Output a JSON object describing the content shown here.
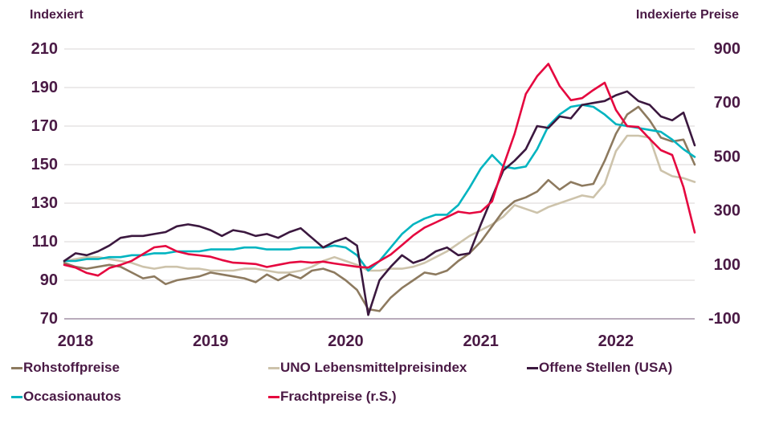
{
  "chart_data": {
    "type": "line",
    "title": "",
    "x": [
      "2018-01",
      "2018-02",
      "2018-03",
      "2018-04",
      "2018-05",
      "2018-06",
      "2018-07",
      "2018-08",
      "2018-09",
      "2018-10",
      "2018-11",
      "2018-12",
      "2019-01",
      "2019-02",
      "2019-03",
      "2019-04",
      "2019-05",
      "2019-06",
      "2019-07",
      "2019-08",
      "2019-09",
      "2019-10",
      "2019-11",
      "2019-12",
      "2020-01",
      "2020-02",
      "2020-03",
      "2020-04",
      "2020-05",
      "2020-06",
      "2020-07",
      "2020-08",
      "2020-09",
      "2020-10",
      "2020-11",
      "2020-12",
      "2021-01",
      "2021-02",
      "2021-03",
      "2021-04",
      "2021-05",
      "2021-06",
      "2021-07",
      "2021-08",
      "2021-09",
      "2021-10",
      "2021-11",
      "2021-12",
      "2022-01",
      "2022-02",
      "2022-03",
      "2022-04",
      "2022-05",
      "2022-06",
      "2022-07",
      "2022-08",
      "2022-09"
    ],
    "x_year_ticks": [
      "2018",
      "2019",
      "2020",
      "2021",
      "2022"
    ],
    "series": [
      {
        "name": "Rohstoffpreise",
        "axis": "left",
        "color": "#8d7a5f",
        "values": [
          99,
          97,
          96,
          97,
          98,
          97,
          94,
          91,
          92,
          88,
          90,
          91,
          92,
          94,
          93,
          92,
          91,
          89,
          93,
          90,
          93,
          91,
          95,
          96,
          94,
          90,
          85,
          75,
          74,
          81,
          86,
          90,
          94,
          93,
          95,
          100,
          104,
          110,
          118,
          126,
          131,
          133,
          136,
          142,
          137,
          141,
          139,
          140,
          152,
          166,
          176,
          180,
          173,
          164,
          162,
          163,
          150
        ]
      },
      {
        "name": "UNO Lebensmittelpreisindex",
        "axis": "left",
        "color": "#cdc3ab",
        "values": [
          100,
          101,
          102,
          102,
          101,
          100,
          99,
          97,
          96,
          97,
          97,
          96,
          96,
          95,
          95,
          95,
          96,
          96,
          95,
          94,
          94,
          95,
          97,
          100,
          102,
          100,
          98,
          95,
          95,
          96,
          96,
          97,
          99,
          102,
          105,
          109,
          113,
          116,
          119,
          123,
          129,
          127,
          125,
          128,
          130,
          132,
          134,
          133,
          140,
          157,
          165,
          165,
          164,
          147,
          144,
          143,
          141
        ]
      },
      {
        "name": "Offene Stellen (USA)",
        "axis": "left",
        "color": "#3b183f",
        "values": [
          100,
          104,
          103,
          105,
          108,
          112,
          113,
          113,
          114,
          115,
          118,
          119,
          118,
          116,
          113,
          116,
          115,
          113,
          114,
          112,
          115,
          117,
          112,
          107,
          110,
          112,
          108,
          72,
          90,
          97,
          103,
          99,
          101,
          105,
          107,
          103,
          104,
          119,
          133,
          147,
          152,
          158,
          170,
          169,
          175,
          174,
          181,
          182,
          183,
          186,
          188,
          183,
          181,
          175,
          173,
          177,
          160
        ]
      },
      {
        "name": "Occasionautos",
        "axis": "left",
        "color": "#00b4c0",
        "values": [
          100,
          100,
          101,
          101,
          102,
          102,
          103,
          103,
          104,
          104,
          105,
          105,
          105,
          106,
          106,
          106,
          107,
          107,
          106,
          106,
          106,
          107,
          107,
          107,
          108,
          107,
          103,
          95,
          100,
          107,
          114,
          119,
          122,
          124,
          124,
          129,
          138,
          148,
          155,
          149,
          148,
          149,
          158,
          170,
          176,
          180,
          181,
          180,
          176,
          171,
          170,
          169,
          168,
          167,
          163,
          158,
          154
        ]
      },
      {
        "name": "Frachtpreise (r.S.)",
        "axis": "right",
        "color": "#e5073f",
        "values": [
          100,
          90,
          70,
          60,
          88,
          100,
          115,
          140,
          165,
          170,
          150,
          140,
          135,
          130,
          118,
          108,
          106,
          103,
          92,
          100,
          108,
          112,
          108,
          112,
          105,
          99,
          93,
          90,
          114,
          138,
          173,
          209,
          238,
          257,
          277,
          297,
          291,
          297,
          335,
          466,
          585,
          733,
          799,
          845,
          763,
          710,
          718,
          748,
          775,
          674,
          614,
          611,
          567,
          525,
          507,
          388,
          220
        ]
      }
    ],
    "left_axis": {
      "title": "Indexiert",
      "min": 70,
      "max": 210,
      "ticks": [
        210,
        190,
        170,
        150,
        130,
        110,
        90,
        70
      ]
    },
    "right_axis": {
      "title": "Indexierte Preise",
      "min": -100,
      "max": 900,
      "ticks": [
        900,
        700,
        500,
        300,
        100,
        -100
      ]
    },
    "grid": true,
    "legend_position": "bottom"
  },
  "colors": {
    "text": "#4a1a45",
    "gridline": "#e0dede",
    "x_axis_line": "#8f7a92",
    "background": "#ffffff"
  }
}
